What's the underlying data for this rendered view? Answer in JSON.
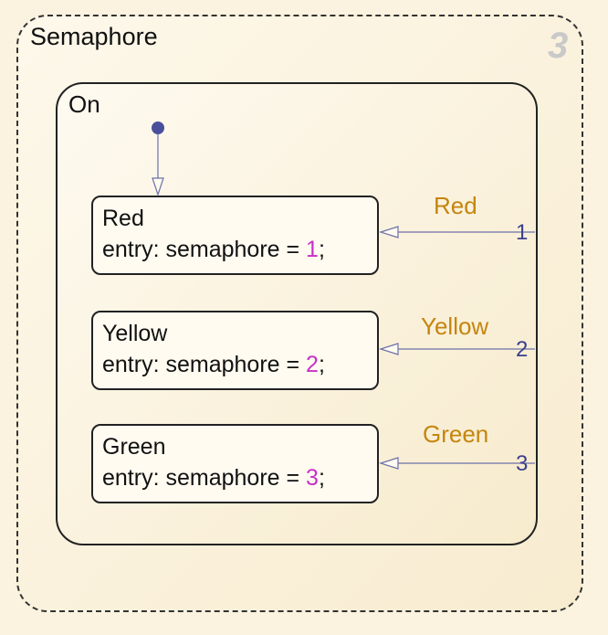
{
  "chart": {
    "name": "Semaphore",
    "execution_order": "3",
    "parent_state": "On",
    "states": [
      {
        "name": "Red",
        "entry_prefix": "entry: semaphore = ",
        "value": "1",
        "entry_suffix": ";"
      },
      {
        "name": "Yellow",
        "entry_prefix": "entry: semaphore = ",
        "value": "2",
        "entry_suffix": ";"
      },
      {
        "name": "Green",
        "entry_prefix": "entry: semaphore = ",
        "value": "3",
        "entry_suffix": ";"
      }
    ],
    "transitions": [
      {
        "label": "Red",
        "port": "1"
      },
      {
        "label": "Yellow",
        "port": "2"
      },
      {
        "label": "Green",
        "port": "3"
      }
    ]
  },
  "colors": {
    "background": "#fbf3df",
    "value": "#c631c6",
    "transition_label": "#c5850e",
    "wire": "#3c3f8c"
  }
}
